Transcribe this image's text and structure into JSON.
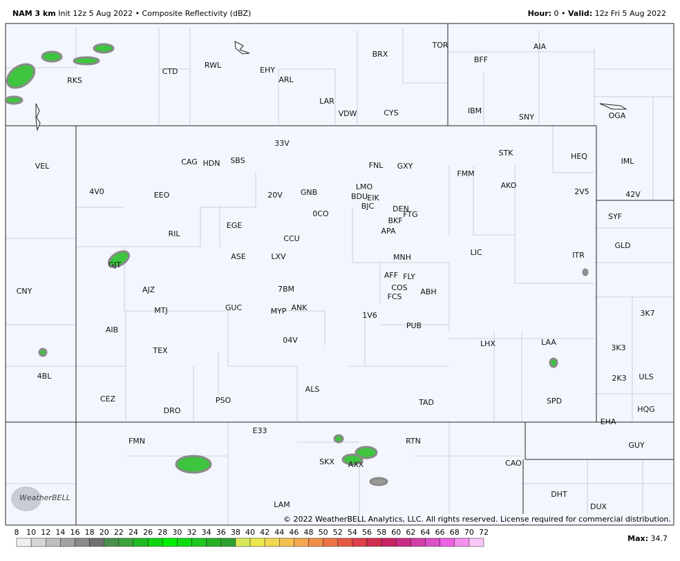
{
  "header": {
    "model": "NAM 3 km",
    "description": "Init 12z 5 Aug 2022 • Composite Reflectivity (dBZ)",
    "hour_label": "Hour:",
    "hour": "0 •",
    "valid_label": "Valid:",
    "valid": "12z Fri 5 Aug 2022"
  },
  "stations": [
    "RKS",
    "CTD",
    "RWL",
    "EHY",
    "ARL",
    "BRX",
    "TOR",
    "AIA",
    "BFF",
    "LAR",
    "VDW",
    "CYS",
    "IBM",
    "SNY",
    "OGA",
    "VEL",
    "33V",
    "CAG",
    "HDN",
    "SBS",
    "FNL",
    "GXY",
    "STK",
    "HEQ",
    "IML",
    "FMM",
    "4V0",
    "EEO",
    "20V",
    "GNB",
    "LMO",
    "BDU",
    "EIK",
    "AKO",
    "2V5",
    "42V",
    "BJC",
    "DEN",
    "FTG",
    "0CO",
    "EGE",
    "BKF",
    "SYF",
    "RIL",
    "APA",
    "CCU",
    "GLD",
    "LIC",
    "ASE",
    "LXV",
    "MNH",
    "ITR",
    "GJT",
    "AFF",
    "FLY",
    "COS",
    "CNY",
    "AJZ",
    "7BM",
    "ABH",
    "FCS",
    "MTJ",
    "GUC",
    "MYP",
    "ANK",
    "1V6",
    "3K7",
    "AIB",
    "PUB",
    "04V",
    "LHX",
    "LAA",
    "3K3",
    "TEX",
    "4BL",
    "2K3",
    "ULS",
    "ALS",
    "CEZ",
    "PSO",
    "TAD",
    "SPD",
    "HQG",
    "DRO",
    "EHA",
    "E33",
    "FMN",
    "RTN",
    "GUY",
    "CAO",
    "SKX",
    "AXX",
    "DHT",
    "LAM",
    "DUX"
  ],
  "copyright": "© 2022 WeatherBELL Analytics, LLC. All rights reserved. License required for commercial distribution.",
  "logo": "WeatherBELL",
  "legend": {
    "ticks": [
      8,
      10,
      12,
      14,
      16,
      18,
      20,
      22,
      24,
      26,
      28,
      30,
      32,
      34,
      36,
      38,
      40,
      42,
      44,
      46,
      48,
      50,
      52,
      54,
      56,
      58,
      60,
      62,
      64,
      66,
      68,
      70,
      72
    ],
    "max_label": "Max:",
    "max": 34.7
  }
}
